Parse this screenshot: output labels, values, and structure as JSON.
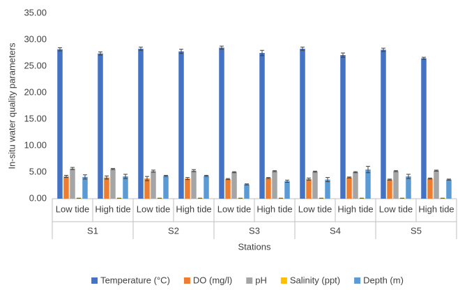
{
  "chart_data": {
    "type": "bar",
    "y_label": "In-situ water quality parameters",
    "x_label": "Stations",
    "categories": [
      "Low tide",
      "High tide",
      "Low tide",
      "High tide",
      "Low tide",
      "High tide",
      "Low tide",
      "High tide",
      "Low tide",
      "High tide"
    ],
    "category_groups": [
      "S1",
      "S2",
      "S3",
      "S4",
      "S5"
    ],
    "ylim": [
      0,
      35
    ],
    "yticks": [
      {
        "value": 0,
        "label": "0.00"
      },
      {
        "value": 5,
        "label": "5.00"
      },
      {
        "value": 10,
        "label": "10.00"
      },
      {
        "value": 15,
        "label": "15.00"
      },
      {
        "value": 20,
        "label": "20.00"
      },
      {
        "value": 25,
        "label": "25.00"
      },
      {
        "value": 30,
        "label": "30.00"
      },
      {
        "value": 35,
        "label": "35.00"
      }
    ],
    "grid": false,
    "legend": "bottom",
    "series": [
      {
        "name": "Temperature (°C)",
        "color": "#4472c4",
        "values": [
          28.2,
          27.4,
          28.3,
          27.8,
          28.5,
          27.5,
          28.3,
          27.1,
          28.1,
          26.5
        ],
        "errors": [
          0.3,
          0.3,
          0.3,
          0.4,
          0.3,
          0.5,
          0.3,
          0.4,
          0.3,
          0.2
        ]
      },
      {
        "name": "DO (mg/l)",
        "color": "#ed7d31",
        "values": [
          4.2,
          4.0,
          3.8,
          3.8,
          3.7,
          3.9,
          3.7,
          4.0,
          3.6,
          3.8
        ],
        "errors": [
          0.2,
          0.3,
          0.4,
          0.2,
          0.1,
          0.1,
          0.2,
          0.1,
          0.1,
          0.1
        ]
      },
      {
        "name": "pH",
        "color": "#a5a5a5",
        "values": [
          5.7,
          5.6,
          5.2,
          5.3,
          5.0,
          5.2,
          5.1,
          5.0,
          5.2,
          5.3
        ],
        "errors": [
          0.2,
          0.1,
          0.2,
          0.2,
          0.1,
          0.1,
          0.1,
          0.1,
          0.1,
          0.1
        ]
      },
      {
        "name": "Salinity (ppt)",
        "color": "#ffc000",
        "values": [
          0.1,
          0.1,
          0.1,
          0.1,
          0.1,
          0.1,
          0.1,
          0.1,
          0.1,
          0.1
        ],
        "errors": [
          0,
          0,
          0,
          0,
          0,
          0,
          0,
          0,
          0,
          0
        ]
      },
      {
        "name": "Depth (m)",
        "color": "#5b9bd5",
        "values": [
          4.1,
          4.2,
          4.3,
          4.3,
          2.7,
          3.3,
          3.6,
          5.5,
          4.2,
          3.6
        ],
        "errors": [
          0.4,
          0.4,
          0.1,
          0.1,
          0.1,
          0.2,
          0.4,
          0.6,
          0.4,
          0.1
        ]
      }
    ]
  }
}
